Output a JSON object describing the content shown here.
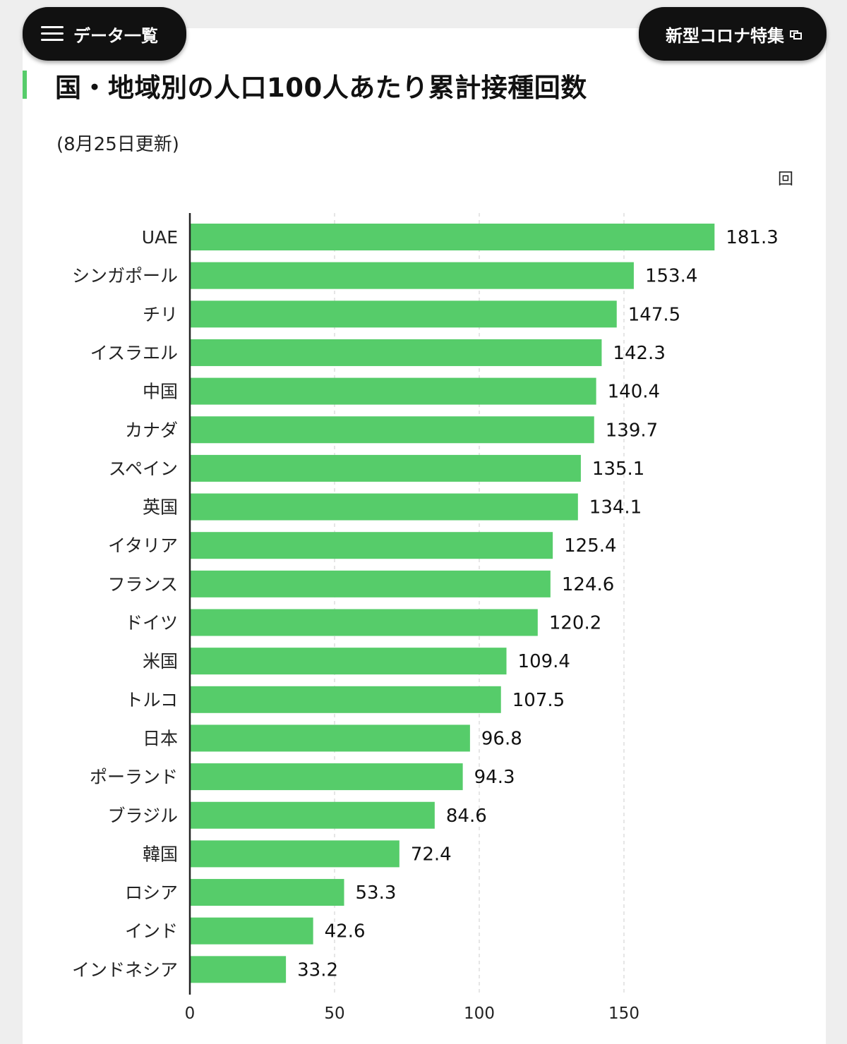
{
  "header": {
    "data_list_label": "データ一覧",
    "feature_label": "新型コロナ特集"
  },
  "colors": {
    "bar": "#56cc6a",
    "accent": "#56cc6a",
    "pill_bg": "#111111"
  },
  "chart_data": {
    "type": "bar",
    "orientation": "horizontal",
    "title": "国・地域別の人口100人あたり累計接種回数",
    "subtitle": "(8月25日更新)",
    "unit": "回",
    "categories": [
      "UAE",
      "シンガポール",
      "チリ",
      "イスラエル",
      "中国",
      "カナダ",
      "スペイン",
      "英国",
      "イタリア",
      "フランス",
      "ドイツ",
      "米国",
      "トルコ",
      "日本",
      "ポーランド",
      "ブラジル",
      "韓国",
      "ロシア",
      "インド",
      "インドネシア"
    ],
    "values": [
      181.3,
      153.4,
      147.5,
      142.3,
      140.4,
      139.7,
      135.1,
      134.1,
      125.4,
      124.6,
      120.2,
      109.4,
      107.5,
      96.8,
      94.3,
      84.6,
      72.4,
      53.3,
      42.6,
      33.2
    ],
    "value_labels": [
      "181.3",
      "153.4",
      "147.5",
      "142.3",
      "140.4",
      "139.7",
      "135.1",
      "134.1",
      "125.4",
      "124.6",
      "120.2",
      "109.4",
      "107.5",
      "96.8",
      "94.3",
      "84.6",
      "72.4",
      "53.3",
      "42.6",
      "33.2"
    ],
    "xticks": [
      0,
      50,
      100,
      150
    ],
    "xtick_labels": [
      "0",
      "50",
      "100",
      "150"
    ],
    "xlim": [
      0,
      200
    ],
    "grid": "vertical dashed"
  }
}
